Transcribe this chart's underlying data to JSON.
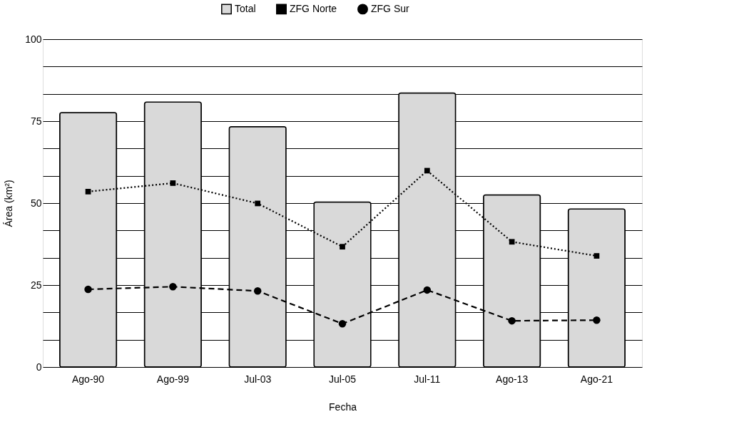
{
  "chart_data": {
    "type": "bar",
    "xlabel": "Fecha",
    "ylabel": "Área (km²)",
    "categories": [
      "Ago-90",
      "Ago-99",
      "Jul-03",
      "Jul-05",
      "Jul-11",
      "Ago-13",
      "Ago-21"
    ],
    "series": [
      {
        "name": "Total",
        "color": "#d9d9d9",
        "values": [
          77.6,
          80.8,
          73.3,
          50.3,
          83.6,
          52.5,
          48.2
        ]
      },
      {
        "name": "ZFG Norte",
        "type": "line",
        "color": "#000000",
        "marker": "square",
        "line_style": "dotted",
        "values": [
          53.5,
          56.1,
          49.9,
          36.7,
          59.9,
          38.2,
          33.9
        ]
      },
      {
        "name": "ZFG Sur",
        "type": "line",
        "color": "#000000",
        "marker": "circle",
        "line_style": "dashed",
        "values": [
          23.7,
          24.5,
          23.2,
          13.2,
          23.5,
          14.1,
          14.3
        ]
      }
    ],
    "ylim": [
      0,
      100
    ],
    "yticks": [
      0,
      {
        "value": 8.33,
        "label": null
      },
      {
        "value": 16.67,
        "label": null
      },
      25,
      {
        "value": 33.33,
        "label": null
      },
      {
        "value": 41.67,
        "label": null
      },
      50,
      {
        "value": 58.33,
        "label": null
      },
      {
        "value": 66.67,
        "label": null
      },
      75,
      {
        "value": 83.33,
        "label": null
      },
      {
        "value": 91.67,
        "label": null
      },
      100
    ],
    "grid": "y",
    "legend": "top"
  }
}
